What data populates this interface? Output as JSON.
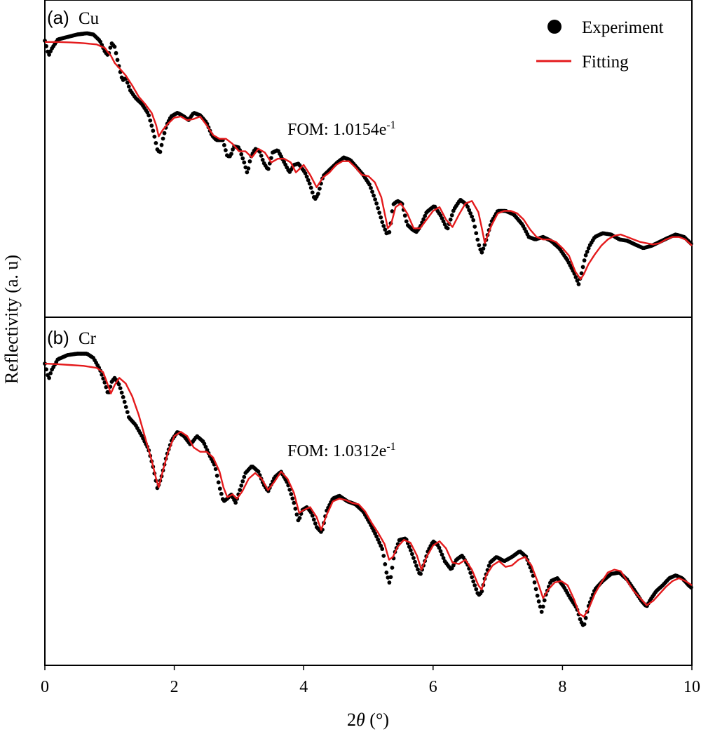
{
  "chart_data": [
    {
      "panel_label": "(a)",
      "panel_element": "Cu",
      "type": "scatter",
      "annotation": {
        "prefix": "FOM: 1.0154e",
        "superscript": "-1"
      },
      "xlim": [
        0,
        10
      ],
      "ylabel": "Reflectivity (a. u)",
      "y_ticks_shown": false,
      "legend": {
        "position": "top-right",
        "entries": [
          {
            "label": "Experiment",
            "marker": "circle",
            "color": "#000000"
          },
          {
            "label": "Fitting",
            "marker": "line",
            "color": "#e41a1c"
          }
        ]
      },
      "series": [
        {
          "name": "Experiment",
          "color": "#000000",
          "x": [
            0.0,
            0.06,
            0.1,
            0.2,
            0.35,
            0.5,
            0.65,
            0.75,
            0.85,
            0.93,
            0.98,
            1.03,
            1.08,
            1.12,
            1.16,
            1.2,
            1.25,
            1.32,
            1.4,
            1.5,
            1.6,
            1.68,
            1.74,
            1.78,
            1.82,
            1.88,
            1.95,
            2.05,
            2.15,
            2.22,
            2.3,
            2.4,
            2.5,
            2.58,
            2.65,
            2.75,
            2.82,
            2.87,
            2.92,
            3.0,
            3.08,
            3.13,
            3.18,
            3.25,
            3.32,
            3.38,
            3.45,
            3.52,
            3.6,
            3.68,
            3.78,
            3.85,
            3.92,
            4.02,
            4.1,
            4.17,
            4.22,
            4.3,
            4.4,
            4.52,
            4.62,
            4.72,
            4.82,
            4.92,
            5.02,
            5.12,
            5.22,
            5.28,
            5.33,
            5.38,
            5.45,
            5.52,
            5.6,
            5.68,
            5.74,
            5.8,
            5.9,
            6.02,
            6.12,
            6.22,
            6.32,
            6.42,
            6.52,
            6.62,
            6.7,
            6.75,
            6.8,
            6.9,
            7.0,
            7.12,
            7.25,
            7.38,
            7.48,
            7.58,
            7.7,
            7.82,
            7.95,
            8.08,
            8.18,
            8.25,
            8.3,
            8.35,
            8.42,
            8.5,
            8.62,
            8.75,
            8.88,
            9.0,
            9.12,
            9.25,
            9.38,
            9.5,
            9.62,
            9.75,
            9.88,
            10.0
          ],
          "y": [
            1.0,
            0.94,
            0.965,
            1.005,
            1.015,
            1.025,
            1.03,
            1.025,
            1.0,
            0.955,
            0.94,
            0.99,
            0.975,
            0.925,
            0.88,
            0.84,
            0.85,
            0.8,
            0.77,
            0.745,
            0.705,
            0.63,
            0.56,
            0.55,
            0.6,
            0.66,
            0.695,
            0.71,
            0.695,
            0.68,
            0.71,
            0.7,
            0.67,
            0.62,
            0.6,
            0.6,
            0.535,
            0.535,
            0.575,
            0.57,
            0.51,
            0.465,
            0.53,
            0.565,
            0.555,
            0.51,
            0.48,
            0.55,
            0.56,
            0.52,
            0.47,
            0.5,
            0.505,
            0.47,
            0.42,
            0.36,
            0.38,
            0.455,
            0.48,
            0.51,
            0.53,
            0.52,
            0.49,
            0.46,
            0.42,
            0.35,
            0.265,
            0.225,
            0.23,
            0.34,
            0.355,
            0.345,
            0.26,
            0.24,
            0.23,
            0.25,
            0.31,
            0.335,
            0.295,
            0.24,
            0.32,
            0.36,
            0.34,
            0.28,
            0.185,
            0.145,
            0.18,
            0.27,
            0.315,
            0.315,
            0.3,
            0.26,
            0.21,
            0.2,
            0.21,
            0.195,
            0.165,
            0.115,
            0.065,
            0.02,
            0.07,
            0.13,
            0.175,
            0.21,
            0.225,
            0.22,
            0.2,
            0.195,
            0.18,
            0.165,
            0.175,
            0.19,
            0.205,
            0.22,
            0.21,
            0.18
          ]
        },
        {
          "name": "Fitting",
          "color": "#e41a1c",
          "x": [
            0.0,
            0.2,
            0.4,
            0.6,
            0.8,
            0.93,
            0.97,
            1.02,
            1.08,
            1.15,
            1.25,
            1.35,
            1.45,
            1.55,
            1.65,
            1.72,
            1.76,
            1.82,
            1.9,
            2.0,
            2.1,
            2.2,
            2.3,
            2.4,
            2.5,
            2.6,
            2.7,
            2.8,
            2.9,
            3.0,
            3.1,
            3.2,
            3.3,
            3.4,
            3.5,
            3.6,
            3.7,
            3.8,
            3.88,
            4.0,
            4.1,
            4.2,
            4.3,
            4.4,
            4.5,
            4.6,
            4.7,
            4.8,
            4.9,
            5.0,
            5.1,
            5.2,
            5.3,
            5.35,
            5.42,
            5.5,
            5.6,
            5.7,
            5.8,
            5.9,
            6.0,
            6.1,
            6.2,
            6.3,
            6.4,
            6.5,
            6.6,
            6.7,
            6.75,
            6.8,
            6.9,
            7.0,
            7.1,
            7.2,
            7.3,
            7.4,
            7.5,
            7.6,
            7.7,
            7.8,
            7.9,
            8.0,
            8.1,
            8.2,
            8.28,
            8.33,
            8.4,
            8.5,
            8.6,
            8.7,
            8.8,
            8.9,
            9.0,
            9.1,
            9.2,
            9.3,
            9.4,
            9.5,
            9.6,
            9.7,
            9.8,
            9.9,
            10.0
          ],
          "y": [
            0.995,
            0.995,
            0.993,
            0.99,
            0.985,
            0.97,
            0.955,
            0.94,
            0.91,
            0.89,
            0.86,
            0.82,
            0.775,
            0.745,
            0.71,
            0.66,
            0.615,
            0.64,
            0.665,
            0.69,
            0.695,
            0.68,
            0.685,
            0.695,
            0.66,
            0.62,
            0.605,
            0.605,
            0.585,
            0.555,
            0.555,
            0.53,
            0.565,
            0.55,
            0.51,
            0.525,
            0.525,
            0.51,
            0.47,
            0.5,
            0.46,
            0.41,
            0.45,
            0.47,
            0.5,
            0.515,
            0.515,
            0.49,
            0.46,
            0.455,
            0.43,
            0.37,
            0.245,
            0.26,
            0.33,
            0.345,
            0.305,
            0.245,
            0.245,
            0.28,
            0.315,
            0.33,
            0.28,
            0.25,
            0.3,
            0.345,
            0.355,
            0.31,
            0.25,
            0.185,
            0.255,
            0.305,
            0.315,
            0.315,
            0.305,
            0.28,
            0.24,
            0.21,
            0.2,
            0.2,
            0.19,
            0.165,
            0.135,
            0.07,
            0.04,
            0.06,
            0.1,
            0.14,
            0.175,
            0.2,
            0.215,
            0.22,
            0.21,
            0.2,
            0.19,
            0.185,
            0.18,
            0.185,
            0.2,
            0.21,
            0.21,
            0.2,
            0.175
          ]
        }
      ]
    },
    {
      "panel_label": "(b)",
      "panel_element": "Cr",
      "type": "scatter",
      "annotation": {
        "prefix": "FOM: 1.0312e",
        "superscript": "-1"
      },
      "xlim": [
        0,
        10
      ],
      "xlabel_parts": [
        "2",
        "θ",
        " (°)"
      ],
      "xticks": [
        0,
        2,
        4,
        6,
        8,
        10
      ],
      "y_ticks_shown": false,
      "series": [
        {
          "name": "Experiment",
          "color": "#000000",
          "x": [
            0.0,
            0.06,
            0.1,
            0.2,
            0.35,
            0.5,
            0.65,
            0.75,
            0.85,
            0.93,
            0.98,
            1.03,
            1.08,
            1.15,
            1.22,
            1.3,
            1.4,
            1.5,
            1.6,
            1.68,
            1.74,
            1.8,
            1.88,
            1.96,
            2.05,
            2.15,
            2.25,
            2.35,
            2.45,
            2.55,
            2.63,
            2.7,
            2.76,
            2.82,
            2.88,
            2.95,
            3.02,
            3.1,
            3.2,
            3.3,
            3.38,
            3.45,
            3.55,
            3.65,
            3.75,
            3.85,
            3.92,
            3.98,
            4.05,
            4.12,
            4.2,
            4.28,
            4.35,
            4.45,
            4.55,
            4.68,
            4.8,
            4.92,
            5.02,
            5.12,
            5.22,
            5.28,
            5.33,
            5.4,
            5.48,
            5.58,
            5.66,
            5.74,
            5.8,
            5.86,
            5.92,
            6.0,
            6.08,
            6.18,
            6.28,
            6.36,
            6.45,
            6.54,
            6.62,
            6.7,
            6.75,
            6.8,
            6.88,
            6.98,
            7.1,
            7.22,
            7.34,
            7.44,
            7.54,
            7.62,
            7.68,
            7.74,
            7.82,
            7.92,
            8.02,
            8.12,
            8.22,
            8.28,
            8.33,
            8.4,
            8.5,
            8.62,
            8.75,
            8.88,
            9.0,
            9.12,
            9.22,
            9.3,
            9.36,
            9.45,
            9.55,
            9.65,
            9.75,
            9.85,
            9.95,
            10.0
          ],
          "y": [
            0.98,
            0.925,
            0.955,
            0.995,
            1.01,
            1.015,
            1.015,
            1.0,
            0.96,
            0.91,
            0.87,
            0.915,
            0.93,
            0.905,
            0.855,
            0.79,
            0.765,
            0.725,
            0.68,
            0.61,
            0.54,
            0.58,
            0.655,
            0.71,
            0.74,
            0.725,
            0.695,
            0.725,
            0.705,
            0.655,
            0.62,
            0.545,
            0.495,
            0.505,
            0.52,
            0.49,
            0.54,
            0.595,
            0.62,
            0.6,
            0.555,
            0.53,
            0.58,
            0.6,
            0.56,
            0.49,
            0.425,
            0.465,
            0.475,
            0.455,
            0.405,
            0.385,
            0.46,
            0.505,
            0.515,
            0.495,
            0.485,
            0.46,
            0.42,
            0.375,
            0.325,
            0.245,
            0.205,
            0.31,
            0.36,
            0.365,
            0.32,
            0.27,
            0.235,
            0.275,
            0.32,
            0.355,
            0.34,
            0.285,
            0.255,
            0.29,
            0.305,
            0.27,
            0.215,
            0.165,
            0.175,
            0.225,
            0.28,
            0.3,
            0.285,
            0.3,
            0.32,
            0.3,
            0.24,
            0.155,
            0.105,
            0.165,
            0.215,
            0.225,
            0.195,
            0.155,
            0.12,
            0.075,
            0.055,
            0.125,
            0.185,
            0.215,
            0.24,
            0.245,
            0.22,
            0.18,
            0.145,
            0.125,
            0.15,
            0.18,
            0.2,
            0.225,
            0.235,
            0.225,
            0.2,
            0.19
          ]
        },
        {
          "name": "Fitting",
          "color": "#e41a1c",
          "x": [
            0.0,
            0.2,
            0.4,
            0.6,
            0.8,
            0.9,
            0.95,
            1.02,
            1.08,
            1.15,
            1.25,
            1.35,
            1.45,
            1.55,
            1.65,
            1.72,
            1.76,
            1.82,
            1.9,
            2.0,
            2.1,
            2.2,
            2.3,
            2.4,
            2.5,
            2.6,
            2.7,
            2.76,
            2.82,
            2.9,
            2.97,
            3.05,
            3.15,
            3.25,
            3.35,
            3.45,
            3.55,
            3.65,
            3.75,
            3.85,
            3.93,
            4.0,
            4.1,
            4.2,
            4.27,
            4.35,
            4.45,
            4.55,
            4.65,
            4.75,
            4.85,
            4.95,
            5.05,
            5.15,
            5.25,
            5.32,
            5.38,
            5.45,
            5.55,
            5.65,
            5.75,
            5.82,
            5.9,
            6.0,
            6.1,
            6.2,
            6.3,
            6.4,
            6.5,
            6.6,
            6.7,
            6.75,
            6.82,
            6.92,
            7.02,
            7.12,
            7.22,
            7.32,
            7.42,
            7.52,
            7.62,
            7.7,
            7.78,
            7.88,
            7.98,
            8.08,
            8.18,
            8.26,
            8.33,
            8.4,
            8.5,
            8.6,
            8.7,
            8.8,
            8.9,
            9.0,
            9.1,
            9.2,
            9.3,
            9.4,
            9.5,
            9.6,
            9.7,
            9.8,
            9.9,
            10.0
          ],
          "y": [
            0.98,
            0.978,
            0.975,
            0.972,
            0.965,
            0.95,
            0.92,
            0.875,
            0.905,
            0.93,
            0.91,
            0.865,
            0.8,
            0.72,
            0.64,
            0.575,
            0.545,
            0.6,
            0.665,
            0.725,
            0.74,
            0.725,
            0.685,
            0.67,
            0.67,
            0.65,
            0.6,
            0.545,
            0.51,
            0.52,
            0.505,
            0.53,
            0.575,
            0.595,
            0.575,
            0.535,
            0.565,
            0.6,
            0.575,
            0.525,
            0.455,
            0.465,
            0.475,
            0.44,
            0.395,
            0.445,
            0.495,
            0.505,
            0.5,
            0.49,
            0.485,
            0.46,
            0.42,
            0.385,
            0.345,
            0.29,
            0.3,
            0.335,
            0.36,
            0.35,
            0.305,
            0.255,
            0.3,
            0.34,
            0.355,
            0.33,
            0.28,
            0.275,
            0.29,
            0.255,
            0.2,
            0.185,
            0.235,
            0.27,
            0.285,
            0.265,
            0.27,
            0.29,
            0.3,
            0.27,
            0.21,
            0.155,
            0.185,
            0.21,
            0.215,
            0.2,
            0.15,
            0.1,
            0.09,
            0.115,
            0.17,
            0.21,
            0.245,
            0.255,
            0.25,
            0.215,
            0.18,
            0.155,
            0.13,
            0.145,
            0.17,
            0.195,
            0.215,
            0.225,
            0.215,
            0.2
          ]
        }
      ]
    }
  ]
}
